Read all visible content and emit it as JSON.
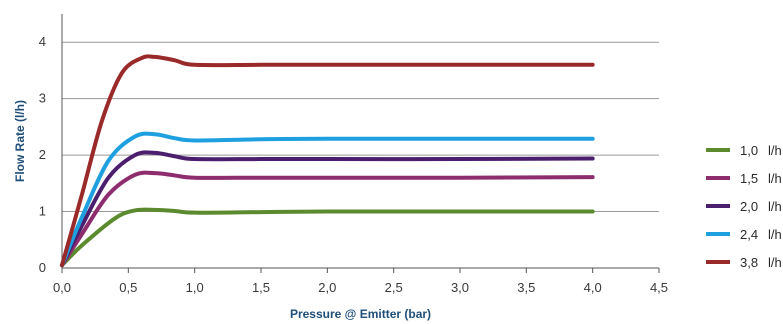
{
  "chart_data": {
    "type": "line",
    "title": "",
    "xlabel": "Pressure @ Emitter (bar)",
    "ylabel": "Flow Rate (l/h)",
    "xlim": [
      0,
      4.5
    ],
    "ylim": [
      0,
      4.5
    ],
    "x_ticks": [
      "0,0",
      "0,5",
      "1,0",
      "1,5",
      "2,0",
      "2,5",
      "3,0",
      "3,5",
      "4,0",
      "4,5"
    ],
    "y_ticks": [
      "0",
      "1",
      "2",
      "3",
      "4"
    ],
    "grid": "horizontal",
    "legend_position": "right",
    "series": [
      {
        "name": "1,0",
        "unit": "l/h",
        "color": "#5c8a2e",
        "points": [
          [
            0,
            0.05
          ],
          [
            0.15,
            0.4
          ],
          [
            0.4,
            0.88
          ],
          [
            0.55,
            1.02
          ],
          [
            0.7,
            1.03
          ],
          [
            0.85,
            1.01
          ],
          [
            1.0,
            0.98
          ],
          [
            1.5,
            0.99
          ],
          [
            2.0,
            1.0
          ],
          [
            3.0,
            1.0
          ],
          [
            4.0,
            1.0
          ]
        ]
      },
      {
        "name": "1,5",
        "unit": "l/h",
        "color": "#8e2d6e",
        "points": [
          [
            0,
            0.05
          ],
          [
            0.15,
            0.6
          ],
          [
            0.35,
            1.3
          ],
          [
            0.55,
            1.65
          ],
          [
            0.7,
            1.68
          ],
          [
            0.85,
            1.64
          ],
          [
            1.0,
            1.6
          ],
          [
            1.5,
            1.6
          ],
          [
            2.0,
            1.6
          ],
          [
            3.0,
            1.6
          ],
          [
            4.0,
            1.61
          ]
        ]
      },
      {
        "name": "2,0",
        "unit": "l/h",
        "color": "#4b1e6e",
        "points": [
          [
            0,
            0.05
          ],
          [
            0.15,
            0.75
          ],
          [
            0.35,
            1.6
          ],
          [
            0.55,
            2.0
          ],
          [
            0.7,
            2.04
          ],
          [
            0.85,
            1.98
          ],
          [
            1.0,
            1.93
          ],
          [
            1.5,
            1.93
          ],
          [
            2.0,
            1.93
          ],
          [
            3.0,
            1.93
          ],
          [
            4.0,
            1.94
          ]
        ]
      },
      {
        "name": "2,4",
        "unit": "l/h",
        "color": "#1ea0e0",
        "points": [
          [
            0,
            0.05
          ],
          [
            0.15,
            0.9
          ],
          [
            0.35,
            1.9
          ],
          [
            0.55,
            2.33
          ],
          [
            0.7,
            2.37
          ],
          [
            0.85,
            2.3
          ],
          [
            1.0,
            2.26
          ],
          [
            1.5,
            2.28
          ],
          [
            2.0,
            2.29
          ],
          [
            3.0,
            2.29
          ],
          [
            4.0,
            2.29
          ]
        ]
      },
      {
        "name": "3,8",
        "unit": "l/h",
        "color": "#9a2a2a",
        "points": [
          [
            0,
            0.05
          ],
          [
            0.15,
            1.3
          ],
          [
            0.3,
            2.6
          ],
          [
            0.45,
            3.45
          ],
          [
            0.6,
            3.72
          ],
          [
            0.7,
            3.74
          ],
          [
            0.85,
            3.68
          ],
          [
            1.0,
            3.6
          ],
          [
            1.5,
            3.6
          ],
          [
            2.0,
            3.6
          ],
          [
            3.0,
            3.6
          ],
          [
            4.0,
            3.6
          ]
        ]
      }
    ]
  }
}
